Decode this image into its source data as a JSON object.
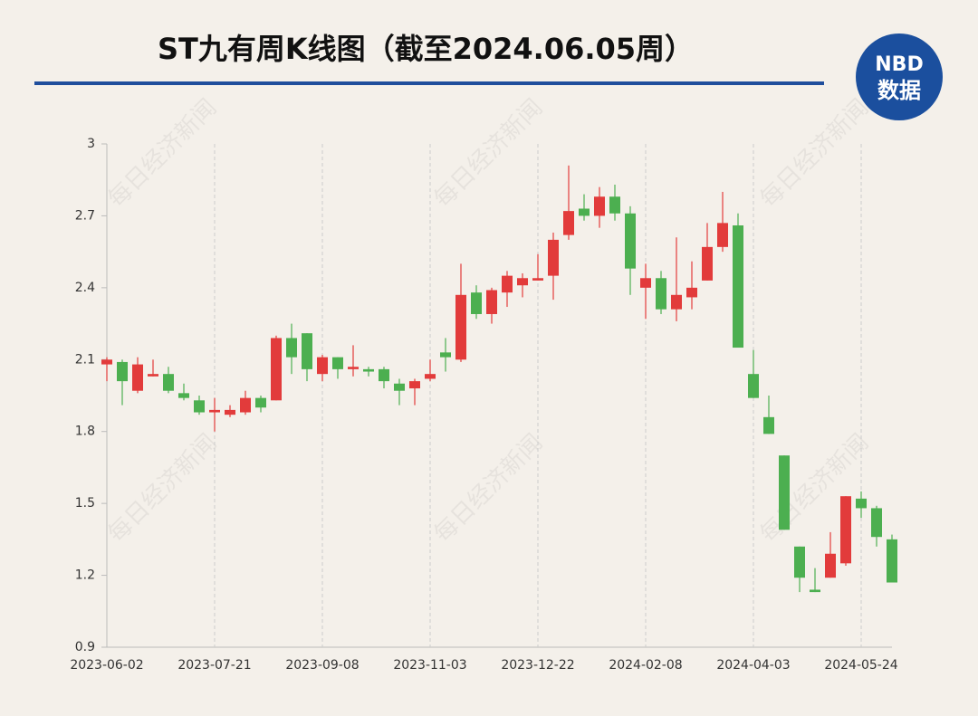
{
  "logo": {
    "line1": "NBD",
    "line2": "数据"
  },
  "watermark": "每日经济新闻",
  "chart_data": {
    "type": "candlestick",
    "title": "ST九有周K线图（截至2024.06.05周）",
    "categories": [
      "2023-06-02",
      null,
      null,
      null,
      null,
      null,
      null,
      "2023-07-21",
      null,
      null,
      null,
      null,
      null,
      null,
      "2023-09-08",
      null,
      null,
      null,
      null,
      null,
      null,
      "2023-11-03",
      null,
      null,
      null,
      null,
      null,
      null,
      "2023-12-22",
      null,
      null,
      null,
      null,
      null,
      null,
      "2024-02-08",
      null,
      null,
      null,
      null,
      null,
      null,
      "2024-04-03",
      null,
      null,
      null,
      null,
      null,
      null,
      "2024-05-24",
      null,
      null
    ],
    "open": [
      2.08,
      2.09,
      1.97,
      2.03,
      2.04,
      1.96,
      1.93,
      1.88,
      1.87,
      1.88,
      1.94,
      1.93,
      2.19,
      2.21,
      2.04,
      2.11,
      2.06,
      2.06,
      2.06,
      2.0,
      1.98,
      2.02,
      2.13,
      2.1,
      2.38,
      2.29,
      2.38,
      2.41,
      2.43,
      2.45,
      2.62,
      2.73,
      2.7,
      2.78,
      2.71,
      2.4,
      2.44,
      2.31,
      2.36,
      2.43,
      2.57,
      2.66,
      2.04,
      1.86,
      1.7,
      1.32,
      1.14,
      1.19,
      1.25,
      1.52,
      1.48,
      1.35
    ],
    "high": [
      2.11,
      2.1,
      2.11,
      2.1,
      2.07,
      2.0,
      1.95,
      1.94,
      1.91,
      1.97,
      1.95,
      2.2,
      2.25,
      2.21,
      2.12,
      2.11,
      2.16,
      2.07,
      2.07,
      2.02,
      2.02,
      2.1,
      2.19,
      2.5,
      2.41,
      2.4,
      2.47,
      2.46,
      2.54,
      2.63,
      2.91,
      2.79,
      2.82,
      2.83,
      2.74,
      2.5,
      2.47,
      2.61,
      2.51,
      2.67,
      2.8,
      2.71,
      2.14,
      1.95,
      1.7,
      1.32,
      1.23,
      1.38,
      1.53,
      1.55,
      1.49,
      1.37
    ],
    "low": [
      2.01,
      1.91,
      1.96,
      2.03,
      1.96,
      1.93,
      1.87,
      1.8,
      1.86,
      1.87,
      1.88,
      1.93,
      2.04,
      2.01,
      2.01,
      2.02,
      2.03,
      2.03,
      1.98,
      1.91,
      1.91,
      2.01,
      2.05,
      2.09,
      2.27,
      2.25,
      2.32,
      2.36,
      2.43,
      2.35,
      2.6,
      2.68,
      2.65,
      2.68,
      2.37,
      2.27,
      2.29,
      2.26,
      2.31,
      2.43,
      2.55,
      2.15,
      1.94,
      1.79,
      1.39,
      1.13,
      1.13,
      1.19,
      1.24,
      1.44,
      1.32,
      1.17
    ],
    "close": [
      2.1,
      2.01,
      2.08,
      2.04,
      1.97,
      1.94,
      1.88,
      1.89,
      1.89,
      1.94,
      1.9,
      2.19,
      2.11,
      2.06,
      2.11,
      2.06,
      2.07,
      2.05,
      2.01,
      1.97,
      2.01,
      2.04,
      2.11,
      2.37,
      2.29,
      2.39,
      2.45,
      2.44,
      2.44,
      2.6,
      2.72,
      2.7,
      2.78,
      2.71,
      2.48,
      2.44,
      2.31,
      2.37,
      2.4,
      2.57,
      2.67,
      2.15,
      1.94,
      1.79,
      1.39,
      1.19,
      1.13,
      1.29,
      1.53,
      1.48,
      1.36,
      1.17
    ],
    "up_color": "#e23b3b",
    "down_color": "#4caf50",
    "ylim": [
      0.9,
      3
    ],
    "yticks": [
      0.9,
      1.2,
      1.5,
      1.8,
      2.1,
      2.4,
      2.7,
      3
    ],
    "grid": true
  }
}
